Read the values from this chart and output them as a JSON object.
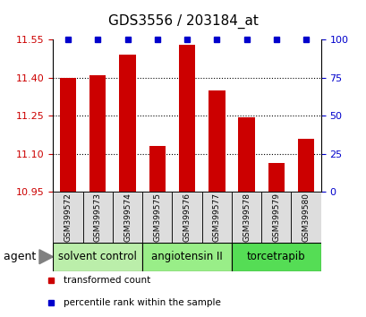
{
  "title": "GDS3556 / 203184_at",
  "samples": [
    "GSM399572",
    "GSM399573",
    "GSM399574",
    "GSM399575",
    "GSM399576",
    "GSM399577",
    "GSM399578",
    "GSM399579",
    "GSM399580"
  ],
  "bar_values": [
    11.4,
    11.41,
    11.49,
    11.13,
    11.53,
    11.35,
    11.245,
    11.065,
    11.16
  ],
  "percentile_values": [
    100,
    100,
    100,
    100,
    100,
    100,
    100,
    100,
    100
  ],
  "ylim_left": [
    10.95,
    11.55
  ],
  "ylim_right": [
    0,
    100
  ],
  "yticks_left": [
    10.95,
    11.1,
    11.25,
    11.4,
    11.55
  ],
  "yticks_right": [
    0,
    25,
    50,
    75,
    100
  ],
  "bar_color": "#cc0000",
  "dot_color": "#0000cc",
  "bar_width": 0.55,
  "groups": [
    {
      "label": "solvent control",
      "indices": [
        0,
        1,
        2
      ],
      "color": "#bbeeaa"
    },
    {
      "label": "angiotensin II",
      "indices": [
        3,
        4,
        5
      ],
      "color": "#99ee88"
    },
    {
      "label": "torcetrapib",
      "indices": [
        6,
        7,
        8
      ],
      "color": "#55dd55"
    }
  ],
  "agent_label": "agent",
  "legend_items": [
    {
      "label": "transformed count",
      "color": "#cc0000"
    },
    {
      "label": "percentile rank within the sample",
      "color": "#0000cc"
    }
  ],
  "grid_color": "#000000",
  "background_plot": "#ffffff",
  "background_label": "#dddddd",
  "title_fontsize": 11,
  "tick_fontsize": 8,
  "label_fontsize": 6.5,
  "group_fontsize": 8.5
}
